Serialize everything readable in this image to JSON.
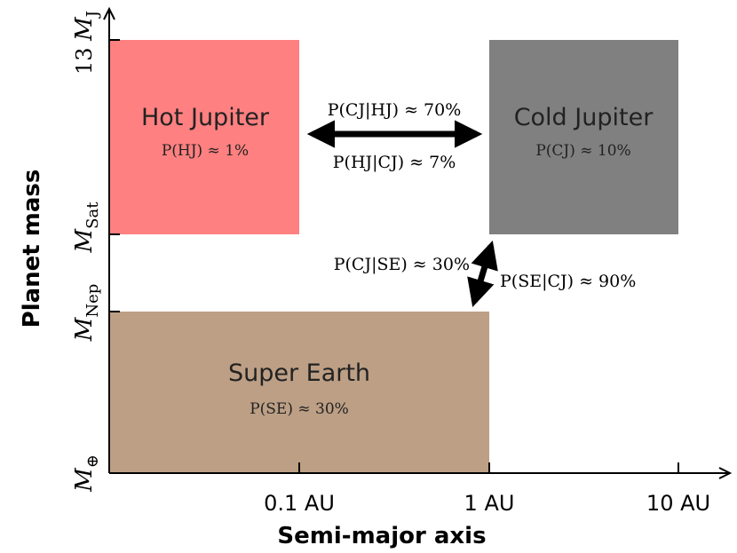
{
  "x_axis": {
    "label": "Semi-major axis",
    "ticks": [
      "0.1 AU",
      "1 AU",
      "10 AU"
    ]
  },
  "y_axis": {
    "label": "Planet mass",
    "ticks": [
      {
        "base": "M",
        "sub": "⊕",
        "prefix": ""
      },
      {
        "base": "M",
        "sub": "Nep",
        "prefix": ""
      },
      {
        "base": "M",
        "sub": "Sat",
        "prefix": ""
      },
      {
        "base": "M",
        "sub": "J",
        "prefix": "13 "
      }
    ]
  },
  "regions": {
    "hot_jupiter": {
      "name": "Hot Jupiter",
      "prob": "P(HJ) ≈ 1%",
      "color": "#ff8080"
    },
    "cold_jupiter": {
      "name": "Cold Jupiter",
      "prob": "P(CJ) ≈ 10%",
      "color": "#808080"
    },
    "super_earth": {
      "name": "Super Earth",
      "prob": "P(SE) ≈ 30%",
      "color": "#bc9f85"
    }
  },
  "arrows": {
    "cj_given_hj": "P(CJ|HJ) ≈ 70%",
    "hj_given_cj": "P(HJ|CJ) ≈ 7%",
    "cj_given_se": "P(CJ|SE) ≈ 30%",
    "se_given_cj": "P(SE|CJ) ≈ 90%"
  }
}
